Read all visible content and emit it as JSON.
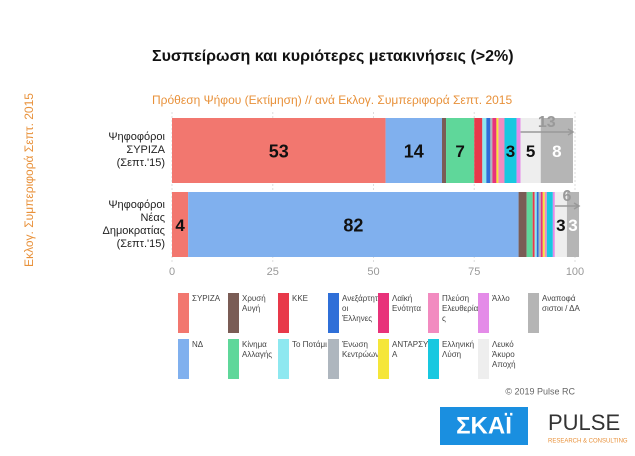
{
  "chart_data": {
    "type": "stacked_barh",
    "title": "Συσπείρωση και κυριότερες μετακινήσεις (>2%)",
    "subtitle": "Πρόθεση Ψήφου (Εκτίμηση) // ανά Εκλογ. Συμπεριφορά Σεπτ. 2015",
    "y_label": "Εκλογ. Συμπεριφορά Σεπτ. 2015",
    "categories": [
      "Ψηφοφόροι\nΣΥΡΙΖΑ\n(Σεπτ.'15)",
      "Ψηφοφόροι\nΝέας\nΔημοκρατίας\n(Σεπτ.'15)"
    ],
    "series": [
      {
        "name": "ΣΥΡΙΖΑ",
        "color": "#f2776f",
        "values": [
          53,
          4
        ]
      },
      {
        "name": "ΝΔ",
        "color": "#80b0ee",
        "values": [
          14,
          82
        ]
      },
      {
        "name": "Χρυσή Αυγή",
        "color": "#7a5c55",
        "values": [
          1,
          2
        ]
      },
      {
        "name": "Κίνημα Αλλαγής",
        "color": "#5fd79a",
        "values": [
          7,
          1.5
        ]
      },
      {
        "name": "ΚΚΕ",
        "color": "#e8394a",
        "values": [
          2,
          0.5
        ]
      },
      {
        "name": "Το Ποτάμι",
        "color": "#8ee8f0",
        "values": [
          1,
          0.5
        ]
      },
      {
        "name": "Ανεξάρτητοι Έλληνες",
        "color": "#2f6fd8",
        "values": [
          1,
          0.5
        ]
      },
      {
        "name": "Ένωση Κεντρώων",
        "color": "#aeb6be",
        "values": [
          0.5,
          0.5
        ]
      },
      {
        "name": "Λαϊκή Ενότητα",
        "color": "#e8327a",
        "values": [
          1,
          0.5
        ]
      },
      {
        "name": "ΑΝΤΑΡΣΥΑ",
        "color": "#f5e63a",
        "values": [
          0.5,
          0.5
        ]
      },
      {
        "name": "Πλεύση Ελευθερίας",
        "color": "#f28bc0",
        "values": [
          1.5,
          0.5
        ]
      },
      {
        "name": "Ελληνική Λύση",
        "color": "#18c8e0",
        "values": [
          3,
          1.5
        ]
      },
      {
        "name": "Άλλο",
        "color": "#e48be8",
        "values": [
          1,
          0.5
        ]
      },
      {
        "name": "Λευκό Άκυρο Αποχή",
        "color": "#eeeeee",
        "values": [
          5,
          3
        ]
      },
      {
        "name": "Αναποφάσιστοι / ΔΑ",
        "color": "#b5b5b5",
        "values": [
          8,
          3
        ]
      }
    ],
    "brackets": [
      13,
      6
    ],
    "xlim": [
      0,
      100
    ],
    "xticks": [
      0,
      25,
      50,
      75,
      100
    ],
    "grid": true,
    "source": "© 2019 Pulse RC",
    "logos": {
      "skai": "ΣΚΑΪ",
      "pulse": "PULSE",
      "pulse_tag": "RESEARCH & CONSULTING"
    }
  }
}
